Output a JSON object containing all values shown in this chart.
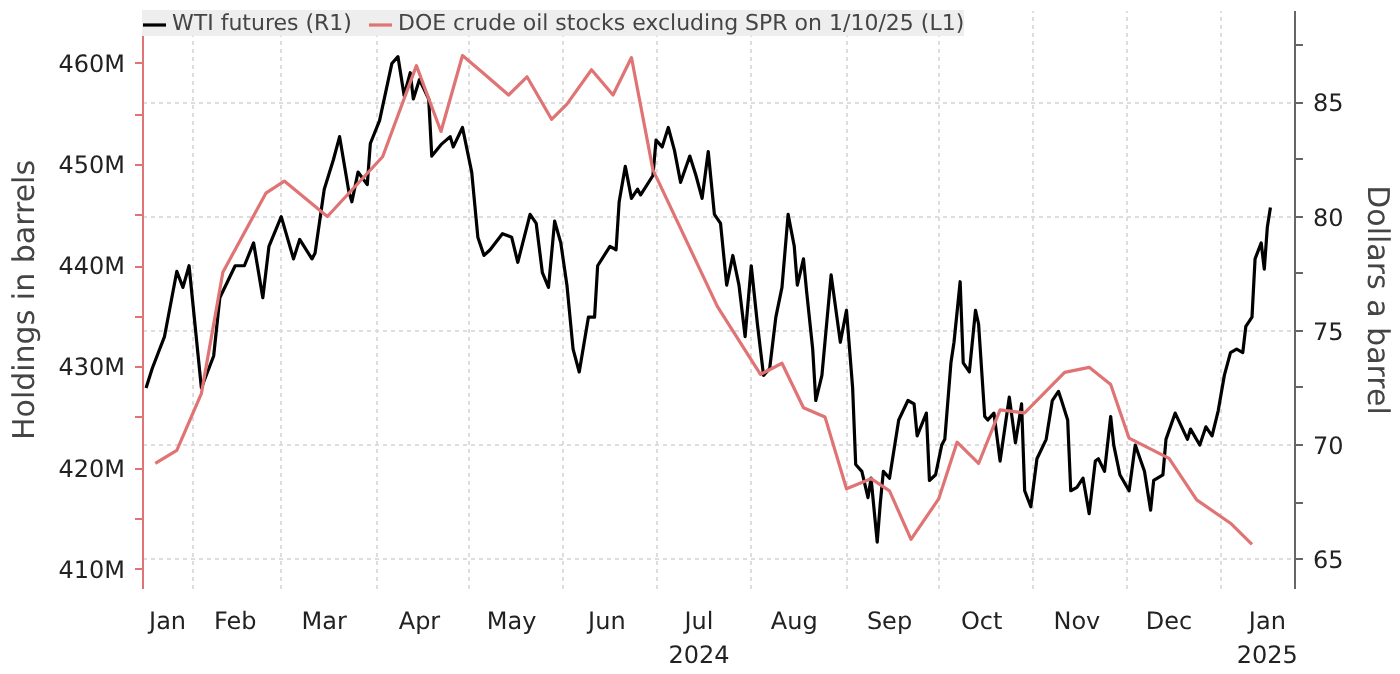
{
  "chart_data": {
    "type": "line",
    "ylabel": "Holdings in barrels",
    "y2label": "Dollars a barrel",
    "x": [
      "2024-01-20",
      "2024-01-27",
      "2024-02-04",
      "2024-02-11",
      "2024-02-25",
      "2024-03-02",
      "2024-03-16",
      "2024-04-03",
      "2024-04-14",
      "2024-04-22",
      "2024-04-29",
      "2024-05-06",
      "2024-05-14",
      "2024-05-20",
      "2024-05-28",
      "2024-06-02",
      "2024-06-10",
      "2024-06-17",
      "2024-06-23",
      "2024-06-30",
      "2024-07-21",
      "2024-08-04",
      "2024-08-11",
      "2024-08-18",
      "2024-08-25",
      "2024-09-01",
      "2024-09-09",
      "2024-09-15",
      "2024-09-22",
      "2024-10-01",
      "2024-10-07",
      "2024-10-14",
      "2024-10-21",
      "2024-10-29",
      "2024-11-11",
      "2024-11-19",
      "2024-11-26",
      "2024-12-02",
      "2024-12-15",
      "2024-12-24",
      "2025-01-04",
      "2025-01-11"
    ],
    "series": [
      {
        "name": "WTI futures (R1)",
        "color": "#000000",
        "axis": "y2",
        "x": [
          "2024-01-17",
          "2024-01-19",
          "2024-01-21",
          "2024-01-23",
          "2024-01-27",
          "2024-01-29",
          "2024-01-31",
          "2024-02-04",
          "2024-02-08",
          "2024-02-10",
          "2024-02-15",
          "2024-02-18",
          "2024-02-21",
          "2024-02-24",
          "2024-02-26",
          "2024-03-01",
          "2024-03-05",
          "2024-03-07",
          "2024-03-11",
          "2024-03-12",
          "2024-03-15",
          "2024-03-18",
          "2024-03-20",
          "2024-03-23",
          "2024-03-24",
          "2024-03-26",
          "2024-03-29",
          "2024-03-30",
          "2024-04-02",
          "2024-04-06",
          "2024-04-08",
          "2024-04-10",
          "2024-04-12",
          "2024-04-13",
          "2024-04-15",
          "2024-04-18",
          "2024-04-19",
          "2024-04-22",
          "2024-04-25",
          "2024-04-26",
          "2024-04-29",
          "2024-05-02",
          "2024-05-04",
          "2024-05-06",
          "2024-05-08",
          "2024-05-12",
          "2024-05-15",
          "2024-05-17",
          "2024-05-21",
          "2024-05-23",
          "2024-05-25",
          "2024-05-27",
          "2024-05-29",
          "2024-05-31",
          "2024-06-02",
          "2024-06-04",
          "2024-06-06",
          "2024-06-09",
          "2024-06-11",
          "2024-06-12",
          "2024-06-16",
          "2024-06-18",
          "2024-06-19",
          "2024-06-21",
          "2024-06-23",
          "2024-06-25",
          "2024-06-26",
          "2024-06-30",
          "2024-07-01",
          "2024-07-03",
          "2024-07-05",
          "2024-07-07",
          "2024-07-09",
          "2024-07-12",
          "2024-07-14",
          "2024-07-16",
          "2024-07-18",
          "2024-07-20",
          "2024-07-22",
          "2024-07-24",
          "2024-07-26",
          "2024-07-28",
          "2024-07-30",
          "2024-08-01",
          "2024-08-03",
          "2024-08-05",
          "2024-08-07",
          "2024-08-09",
          "2024-08-11",
          "2024-08-13",
          "2024-08-15",
          "2024-08-16",
          "2024-08-18",
          "2024-08-19",
          "2024-08-21",
          "2024-08-22",
          "2024-08-24",
          "2024-08-27",
          "2024-08-30",
          "2024-09-01",
          "2024-09-03",
          "2024-09-04",
          "2024-09-06",
          "2024-09-08",
          "2024-09-09",
          "2024-09-11",
          "2024-09-12",
          "2024-09-13",
          "2024-09-15",
          "2024-09-18",
          "2024-09-21",
          "2024-09-23",
          "2024-09-24",
          "2024-09-27",
          "2024-09-28",
          "2024-09-30",
          "2024-10-02",
          "2024-10-03",
          "2024-10-05",
          "2024-10-06",
          "2024-10-08",
          "2024-10-09",
          "2024-10-11",
          "2024-10-13",
          "2024-10-14",
          "2024-10-16",
          "2024-10-17",
          "2024-10-19",
          "2024-10-21",
          "2024-10-24",
          "2024-10-26",
          "2024-10-28",
          "2024-10-29",
          "2024-10-31",
          "2024-11-02",
          "2024-11-05",
          "2024-11-07",
          "2024-11-09",
          "2024-11-10",
          "2024-11-12",
          "2024-11-13",
          "2024-11-15",
          "2024-11-17",
          "2024-11-19",
          "2024-11-21",
          "2024-11-22",
          "2024-11-24",
          "2024-11-26",
          "2024-11-27",
          "2024-11-29",
          "2024-12-02",
          "2024-12-04",
          "2024-12-07",
          "2024-12-09",
          "2024-12-10",
          "2024-12-13",
          "2024-12-14",
          "2024-12-17",
          "2024-12-21",
          "2024-12-22",
          "2024-12-25",
          "2024-12-27",
          "2024-12-29",
          "2024-12-31",
          "2025-01-02",
          "2025-01-04",
          "2025-01-06",
          "2025-01-08",
          "2025-01-09",
          "2025-01-11",
          "2025-01-12",
          "2025-01-14",
          "2025-01-15",
          "2025-01-16",
          "2025-01-17"
        ],
        "values": [
          72.5,
          73.35,
          74.05,
          74.75,
          77.6,
          76.9,
          77.85,
          72.5,
          73.9,
          76.45,
          77.85,
          77.85,
          78.85,
          76.45,
          78.7,
          80.0,
          78.15,
          79.0,
          78.15,
          78.4,
          81.2,
          82.5,
          83.5,
          81.1,
          80.65,
          81.95,
          81.4,
          83.2,
          84.2,
          86.7,
          87.0,
          85.3,
          86.3,
          85.15,
          86.0,
          85.15,
          82.65,
          83.15,
          83.5,
          83.05,
          83.9,
          81.95,
          79.1,
          78.3,
          78.55,
          79.25,
          79.1,
          78.0,
          80.1,
          79.7,
          77.55,
          76.9,
          79.8,
          78.85,
          77.0,
          74.2,
          73.2,
          75.6,
          75.6,
          77.85,
          78.7,
          78.55,
          80.65,
          82.2,
          80.8,
          81.2,
          80.95,
          81.8,
          83.35,
          83.05,
          83.9,
          82.9,
          81.5,
          82.65,
          81.8,
          80.8,
          82.85,
          80.1,
          79.7,
          77.0,
          78.3,
          77.0,
          74.75,
          77.85,
          75.3,
          73.05,
          73.35,
          75.6,
          76.9,
          80.1,
          78.7,
          77.0,
          78.15,
          76.75,
          74.2,
          71.95,
          73.05,
          77.45,
          74.5,
          75.9,
          72.5,
          69.15,
          68.85,
          67.7,
          68.55,
          65.75,
          67.45,
          68.85,
          68.55,
          71.1,
          71.95,
          71.8,
          70.4,
          71.4,
          68.45,
          68.7,
          70.0,
          70.25,
          73.6,
          74.5,
          77.15,
          73.6,
          73.2,
          75.9,
          75.3,
          71.25,
          71.1,
          71.4,
          69.3,
          72.1,
          70.1,
          71.8,
          68.0,
          67.3,
          69.4,
          70.25,
          71.95,
          72.35,
          71.95,
          71.1,
          68.0,
          68.15,
          68.55,
          67.0,
          69.3,
          69.4,
          68.85,
          71.25,
          70.0,
          68.7,
          68.0,
          70.0,
          68.85,
          67.15,
          68.45,
          68.7,
          70.25,
          71.4,
          70.25,
          70.7,
          70.0,
          70.8,
          70.4,
          71.5,
          73.05,
          74.05,
          74.2,
          74.05,
          75.2,
          75.6,
          78.15,
          78.85,
          77.7,
          79.55,
          80.4
        ]
      },
      {
        "name": "DOE crude oil stocks excluding SPR on 1/10/25 (L1)",
        "color": "#e07373",
        "values": [
          420.5,
          421.8,
          427.4,
          439.4,
          447.2,
          448.4,
          444.9,
          450.8,
          459.8,
          453.3,
          460.8,
          459.0,
          456.9,
          458.7,
          454.5,
          456.0,
          459.4,
          456.9,
          460.6,
          449.5,
          436.0,
          429.3,
          430.4,
          426.0,
          425.1,
          418.0,
          419.0,
          417.8,
          413.0,
          417.0,
          422.6,
          420.5,
          425.8,
          425.5,
          429.5,
          430.0,
          428.3,
          423.0,
          421.0,
          416.9,
          414.6,
          412.5
        ]
      }
    ],
    "xlim": [
      "2024-01-16",
      "2025-01-25"
    ],
    "xticks": [
      {
        "value": "2024-02-01",
        "label": null
      },
      {
        "value": "2024-03-01",
        "label": null
      },
      {
        "value": "2024-04-01",
        "label": null
      },
      {
        "value": "2024-05-01",
        "label": null
      },
      {
        "value": "2024-06-01",
        "label": null
      },
      {
        "value": "2024-07-01",
        "label": null
      },
      {
        "value": "2024-08-01",
        "label": null
      },
      {
        "value": "2024-09-01",
        "label": null
      },
      {
        "value": "2024-10-01",
        "label": null
      },
      {
        "value": "2024-11-01",
        "label": null
      },
      {
        "value": "2024-12-01",
        "label": null
      },
      {
        "value": "2025-01-01",
        "label": null
      },
      {
        "value": "2024-01-24",
        "label": "Jan"
      },
      {
        "value": "2024-02-15",
        "label": "Feb"
      },
      {
        "value": "2024-03-15",
        "label": "Mar"
      },
      {
        "value": "2024-04-15",
        "label": "Apr"
      },
      {
        "value": "2024-05-15",
        "label": "May"
      },
      {
        "value": "2024-06-15",
        "label": "Jun"
      },
      {
        "value": "2024-07-15",
        "label": "Jul\n2024"
      },
      {
        "value": "2024-08-15",
        "label": "Aug"
      },
      {
        "value": "2024-09-15",
        "label": "Sep"
      },
      {
        "value": "2024-10-15",
        "label": "Oct"
      },
      {
        "value": "2024-11-15",
        "label": "Nov"
      },
      {
        "value": "2024-12-15",
        "label": "Dec"
      },
      {
        "value": "2025-01-16",
        "label": "Jan\n2025"
      }
    ],
    "ylim": [
      408.1,
      465.2
    ],
    "yticks": [
      {
        "value": 410,
        "label": "410M"
      },
      {
        "value": 415,
        "label": null
      },
      {
        "value": 420,
        "label": "420M"
      },
      {
        "value": 425,
        "label": null
      },
      {
        "value": 430,
        "label": "430M"
      },
      {
        "value": 435,
        "label": null
      },
      {
        "value": 440,
        "label": "440M"
      },
      {
        "value": 445,
        "label": null
      },
      {
        "value": 450,
        "label": "450M"
      },
      {
        "value": 455,
        "label": null
      },
      {
        "value": 460,
        "label": "460M"
      }
    ],
    "y2lim": [
      63.7,
      89.0
    ],
    "y2ticks": [
      65,
      {
        "value": 67.5,
        "label": null
      },
      70,
      {
        "value": 72.5,
        "label": null
      },
      75,
      {
        "value": 77.5,
        "label": null
      },
      80,
      {
        "value": 82.5,
        "label": null
      },
      85,
      {
        "value": 87.5,
        "label": null
      }
    ],
    "grid": true,
    "legend": "top left",
    "marker": "none",
    "line_style": "solid"
  }
}
